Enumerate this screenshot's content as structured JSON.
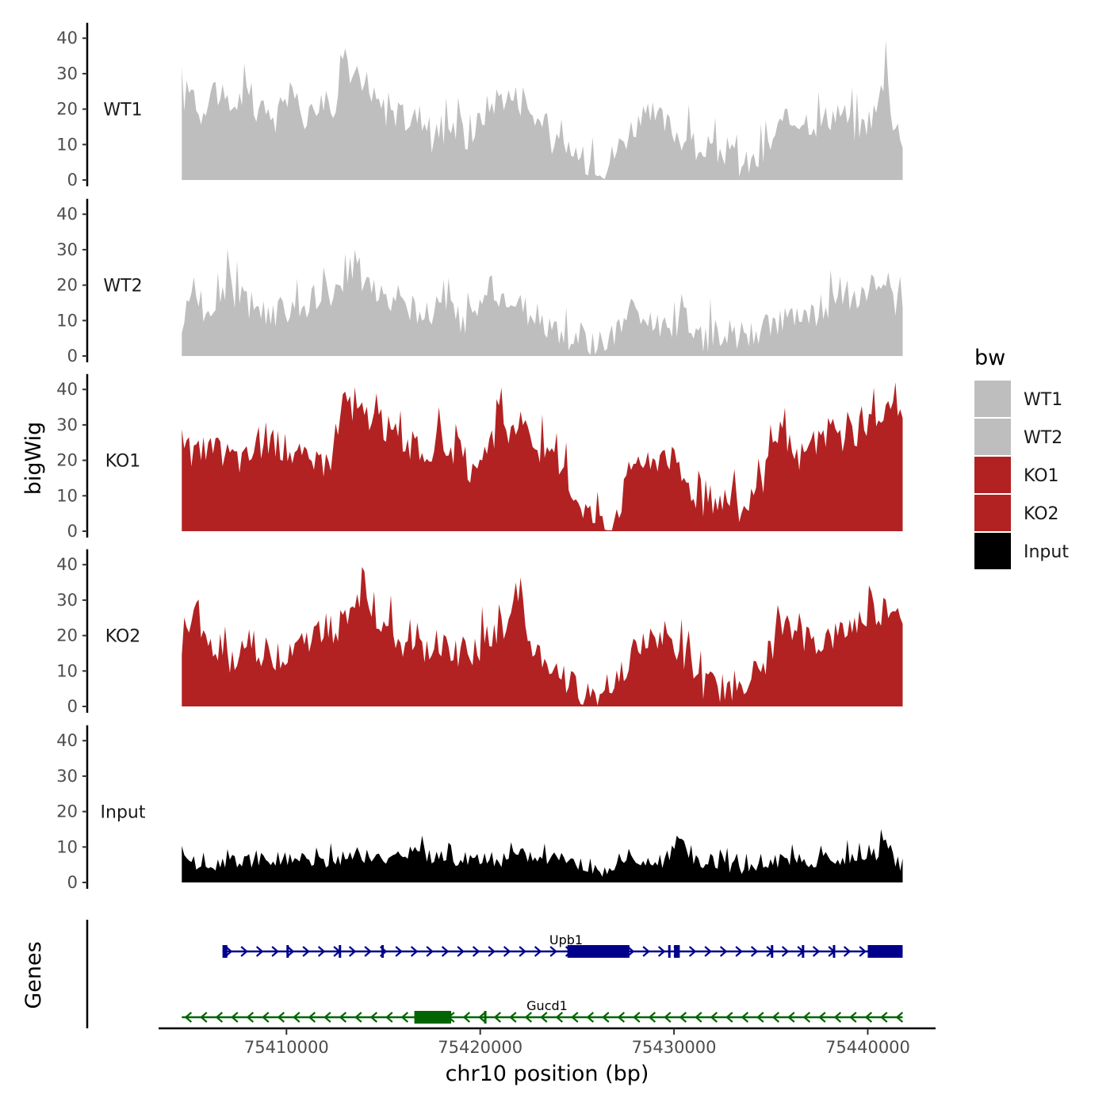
{
  "chart_data": {
    "type": "area",
    "ylabel": "bigWig",
    "xlabel": "chr10 position (bp)",
    "genes_label": "Genes",
    "x_range": [
      75404600,
      75441800
    ],
    "x_axis_range": [
      75403400,
      75443500
    ],
    "x_ticks": [
      75410000,
      75420000,
      75430000,
      75440000
    ],
    "x_tick_labels": [
      "75410000",
      "75420000",
      "75430000",
      "75440000"
    ],
    "y_range": [
      0,
      43
    ],
    "y_ticks": [
      0,
      10,
      20,
      30,
      40
    ],
    "y_tick_labels": [
      "0",
      "10",
      "20",
      "30",
      "40"
    ],
    "colors": {
      "WT1": "#bebebe",
      "WT2": "#bebebe",
      "KO1": "#b22222",
      "KO2": "#b22222",
      "Input": "#000000"
    },
    "series": [
      {
        "name": "WT1",
        "label": "WT1",
        "color": "#bebebe",
        "anchors": [
          [
            75404600,
            22
          ],
          [
            75405000,
            26
          ],
          [
            75405500,
            18
          ],
          [
            75406200,
            27
          ],
          [
            75407000,
            20
          ],
          [
            75407800,
            24
          ],
          [
            75408500,
            19
          ],
          [
            75409500,
            17
          ],
          [
            75410200,
            25
          ],
          [
            75411000,
            18
          ],
          [
            75411800,
            20
          ],
          [
            75412500,
            22
          ],
          [
            75413000,
            38
          ],
          [
            75413400,
            28
          ],
          [
            75414000,
            25
          ],
          [
            75415000,
            20
          ],
          [
            75416000,
            17
          ],
          [
            75417000,
            18
          ],
          [
            75417500,
            12
          ],
          [
            75418500,
            15
          ],
          [
            75419500,
            12
          ],
          [
            75420300,
            20
          ],
          [
            75421000,
            24
          ],
          [
            75422000,
            23
          ],
          [
            75423000,
            17
          ],
          [
            75424000,
            9
          ],
          [
            75425000,
            5
          ],
          [
            75425800,
            6
          ],
          [
            75426500,
            4
          ],
          [
            75427200,
            10
          ],
          [
            75428000,
            16
          ],
          [
            75429000,
            18
          ],
          [
            75430000,
            14
          ],
          [
            75431000,
            10
          ],
          [
            75431500,
            4
          ],
          [
            75432500,
            9
          ],
          [
            75433500,
            4
          ],
          [
            75434500,
            6
          ],
          [
            75435500,
            15
          ],
          [
            75436500,
            18
          ],
          [
            75437500,
            16
          ],
          [
            75438500,
            20
          ],
          [
            75439500,
            14
          ],
          [
            75440500,
            20
          ],
          [
            75441000,
            34
          ],
          [
            75441300,
            15
          ],
          [
            75441800,
            13
          ]
        ]
      },
      {
        "name": "WT2",
        "label": "WT2",
        "color": "#bebebe",
        "anchors": [
          [
            75404600,
            10
          ],
          [
            75405000,
            14
          ],
          [
            75405500,
            17
          ],
          [
            75406000,
            8
          ],
          [
            75406500,
            18
          ],
          [
            75407000,
            21
          ],
          [
            75407500,
            16
          ],
          [
            75408500,
            14
          ],
          [
            75409500,
            12
          ],
          [
            75410300,
            13
          ],
          [
            75411000,
            15
          ],
          [
            75412000,
            17
          ],
          [
            75413000,
            18
          ],
          [
            75413500,
            28
          ],
          [
            75414000,
            20
          ],
          [
            75415000,
            18
          ],
          [
            75416000,
            14
          ],
          [
            75417000,
            12
          ],
          [
            75418000,
            14
          ],
          [
            75419000,
            10
          ],
          [
            75420000,
            13
          ],
          [
            75420500,
            22
          ],
          [
            75421000,
            16
          ],
          [
            75422000,
            13
          ],
          [
            75423000,
            11
          ],
          [
            75424000,
            6
          ],
          [
            75425000,
            4
          ],
          [
            75426000,
            3
          ],
          [
            75427000,
            5
          ],
          [
            75427800,
            14
          ],
          [
            75428500,
            9
          ],
          [
            75429500,
            8
          ],
          [
            75430500,
            10
          ],
          [
            75431500,
            5
          ],
          [
            75432500,
            7
          ],
          [
            75433500,
            4
          ],
          [
            75434500,
            8
          ],
          [
            75435500,
            10
          ],
          [
            75436500,
            9
          ],
          [
            75437500,
            13
          ],
          [
            75438500,
            16
          ],
          [
            75439500,
            18
          ],
          [
            75440500,
            20
          ],
          [
            75441200,
            17
          ],
          [
            75441800,
            11
          ]
        ]
      },
      {
        "name": "KO1",
        "label": "KO1",
        "color": "#b22222",
        "anchors": [
          [
            75404600,
            24
          ],
          [
            75405000,
            22
          ],
          [
            75406000,
            23
          ],
          [
            75407000,
            22
          ],
          [
            75407800,
            20
          ],
          [
            75408500,
            24
          ],
          [
            75409500,
            25
          ],
          [
            75410500,
            22
          ],
          [
            75411500,
            18
          ],
          [
            75412500,
            22
          ],
          [
            75413000,
            41
          ],
          [
            75413400,
            32
          ],
          [
            75414000,
            34
          ],
          [
            75415000,
            30
          ],
          [
            75416000,
            26
          ],
          [
            75417000,
            22
          ],
          [
            75418000,
            25
          ],
          [
            75419000,
            22
          ],
          [
            75419800,
            14
          ],
          [
            75420500,
            23
          ],
          [
            75421000,
            32
          ],
          [
            75421500,
            28
          ],
          [
            75422000,
            30
          ],
          [
            75423000,
            24
          ],
          [
            75424000,
            18
          ],
          [
            75425000,
            10
          ],
          [
            75426000,
            3
          ],
          [
            75426500,
            1
          ],
          [
            75427200,
            8
          ],
          [
            75428000,
            22
          ],
          [
            75428800,
            18
          ],
          [
            75429500,
            24
          ],
          [
            75430500,
            15
          ],
          [
            75431500,
            8
          ],
          [
            75432500,
            10
          ],
          [
            75433500,
            6
          ],
          [
            75434500,
            12
          ],
          [
            75435500,
            28
          ],
          [
            75436200,
            20
          ],
          [
            75437000,
            24
          ],
          [
            75438000,
            28
          ],
          [
            75439000,
            26
          ],
          [
            75440000,
            30
          ],
          [
            75441000,
            34
          ],
          [
            75441500,
            35
          ],
          [
            75441800,
            32
          ]
        ]
      },
      {
        "name": "KO2",
        "label": "KO2",
        "color": "#b22222",
        "anchors": [
          [
            75404600,
            14
          ],
          [
            75405200,
            28
          ],
          [
            75405800,
            18
          ],
          [
            75406500,
            14
          ],
          [
            75407500,
            12
          ],
          [
            75408500,
            16
          ],
          [
            75409500,
            14
          ],
          [
            75410500,
            18
          ],
          [
            75411500,
            20
          ],
          [
            75412500,
            22
          ],
          [
            75413500,
            26
          ],
          [
            75414000,
            35
          ],
          [
            75414500,
            26
          ],
          [
            75415500,
            20
          ],
          [
            75416500,
            14
          ],
          [
            75417500,
            18
          ],
          [
            75418500,
            16
          ],
          [
            75419500,
            14
          ],
          [
            75420500,
            20
          ],
          [
            75421500,
            22
          ],
          [
            75422000,
            35
          ],
          [
            75422500,
            18
          ],
          [
            75423500,
            12
          ],
          [
            75424500,
            6
          ],
          [
            75425500,
            4
          ],
          [
            75426300,
            3
          ],
          [
            75427000,
            8
          ],
          [
            75428000,
            16
          ],
          [
            75428800,
            18
          ],
          [
            75429500,
            20
          ],
          [
            75430500,
            14
          ],
          [
            75431500,
            6
          ],
          [
            75432500,
            5
          ],
          [
            75433500,
            7
          ],
          [
            75434500,
            10
          ],
          [
            75435500,
            22
          ],
          [
            75436500,
            20
          ],
          [
            75437500,
            18
          ],
          [
            75438500,
            20
          ],
          [
            75439500,
            24
          ],
          [
            75440500,
            26
          ],
          [
            75441200,
            29
          ],
          [
            75441800,
            26
          ]
        ]
      },
      {
        "name": "Input",
        "label": "Input",
        "color": "#000000",
        "anchors": [
          [
            75404600,
            6
          ],
          [
            75406000,
            5
          ],
          [
            75408000,
            6
          ],
          [
            75410000,
            7
          ],
          [
            75412000,
            6
          ],
          [
            75413500,
            8
          ],
          [
            75415000,
            7
          ],
          [
            75416500,
            9
          ],
          [
            75418000,
            6
          ],
          [
            75419500,
            7
          ],
          [
            75421000,
            6
          ],
          [
            75422500,
            8
          ],
          [
            75424000,
            6
          ],
          [
            75425500,
            5
          ],
          [
            75426500,
            3
          ],
          [
            75427500,
            7
          ],
          [
            75429000,
            5
          ],
          [
            75430000,
            8
          ],
          [
            75430200,
            14
          ],
          [
            75431000,
            6
          ],
          [
            75432500,
            6
          ],
          [
            75433500,
            3
          ],
          [
            75434500,
            6
          ],
          [
            75436000,
            6
          ],
          [
            75437500,
            6
          ],
          [
            75439000,
            7
          ],
          [
            75440500,
            8
          ],
          [
            75440800,
            12
          ],
          [
            75441500,
            6
          ],
          [
            75441800,
            5
          ]
        ]
      }
    ],
    "legend": {
      "title": "bw",
      "position": "right",
      "entries": [
        {
          "label": "WT1",
          "color": "#bebebe"
        },
        {
          "label": "WT2",
          "color": "#bebebe"
        },
        {
          "label": "KO1",
          "color": "#b22222"
        },
        {
          "label": "KO2",
          "color": "#b22222"
        },
        {
          "label": "Input",
          "color": "#000000"
        }
      ]
    },
    "genes": [
      {
        "name": "Upb1",
        "strand": "+",
        "color": "#00008b",
        "start": 75406700,
        "end": 75441800,
        "exons": [
          [
            75406700,
            75406950
          ],
          [
            75410000,
            75410100
          ],
          [
            75412700,
            75412800
          ],
          [
            75414900,
            75415000
          ],
          [
            75424500,
            75427700
          ],
          [
            75429700,
            75429800
          ],
          [
            75430000,
            75430300
          ],
          [
            75435000,
            75435050
          ],
          [
            75436600,
            75436650
          ],
          [
            75438200,
            75438300
          ],
          [
            75440000,
            75441800
          ]
        ]
      },
      {
        "name": "Gucd1",
        "strand": "-",
        "color": "#006400",
        "start": 75404600,
        "end": 75441800,
        "exons": [
          [
            75416600,
            75418500
          ],
          [
            75420200,
            75420300
          ]
        ]
      }
    ]
  }
}
